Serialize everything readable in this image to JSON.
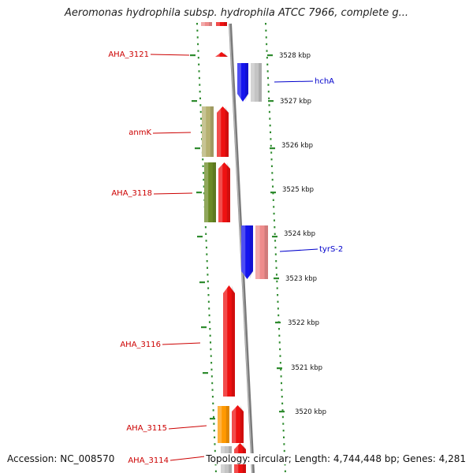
{
  "title": "Aeromonas hydrophila subsp. hydrophila ATCC 7966, complete g...",
  "footer": {
    "accession": "Accession: NC_008570",
    "summary": "Topology: circular; Length: 4,744,448 bp; Genes: 4,281"
  },
  "colors": {
    "red_gene": "#ee1111",
    "blue_gene": "#1515ee",
    "grey_gene": "#c4c4c4",
    "pink_gene": "#ee8c8c",
    "khaki_gene": "#b5b070",
    "olive_gene": "#6b8a25",
    "orange_gene": "#ff9900",
    "axis": "#888888",
    "dots": "#2e8b2e"
  },
  "diagram": {
    "scale_labels": [
      "3528 kbp",
      "3527 kbp",
      "3526 kbp",
      "3525 kbp",
      "3524 kbp",
      "3523 kbp",
      "3522 kbp",
      "3521 kbp",
      "3520 kbp"
    ],
    "gene_labels": [
      {
        "id": "aha3121",
        "text": "AHA_3121",
        "color": "#cc0000"
      },
      {
        "id": "hcha",
        "text": "hchA",
        "color": "#0000cc"
      },
      {
        "id": "anmk",
        "text": "anmK",
        "color": "#cc0000"
      },
      {
        "id": "aha3118",
        "text": "AHA_3118",
        "color": "#cc0000"
      },
      {
        "id": "tyrs2",
        "text": "tyrS-2",
        "color": "#0000cc"
      },
      {
        "id": "aha3116",
        "text": "AHA_3116",
        "color": "#cc0000"
      },
      {
        "id": "aha3115",
        "text": "AHA_3115",
        "color": "#cc0000"
      },
      {
        "id": "aha3114",
        "text": "AHA_3114",
        "color": "#cc0000"
      }
    ]
  }
}
